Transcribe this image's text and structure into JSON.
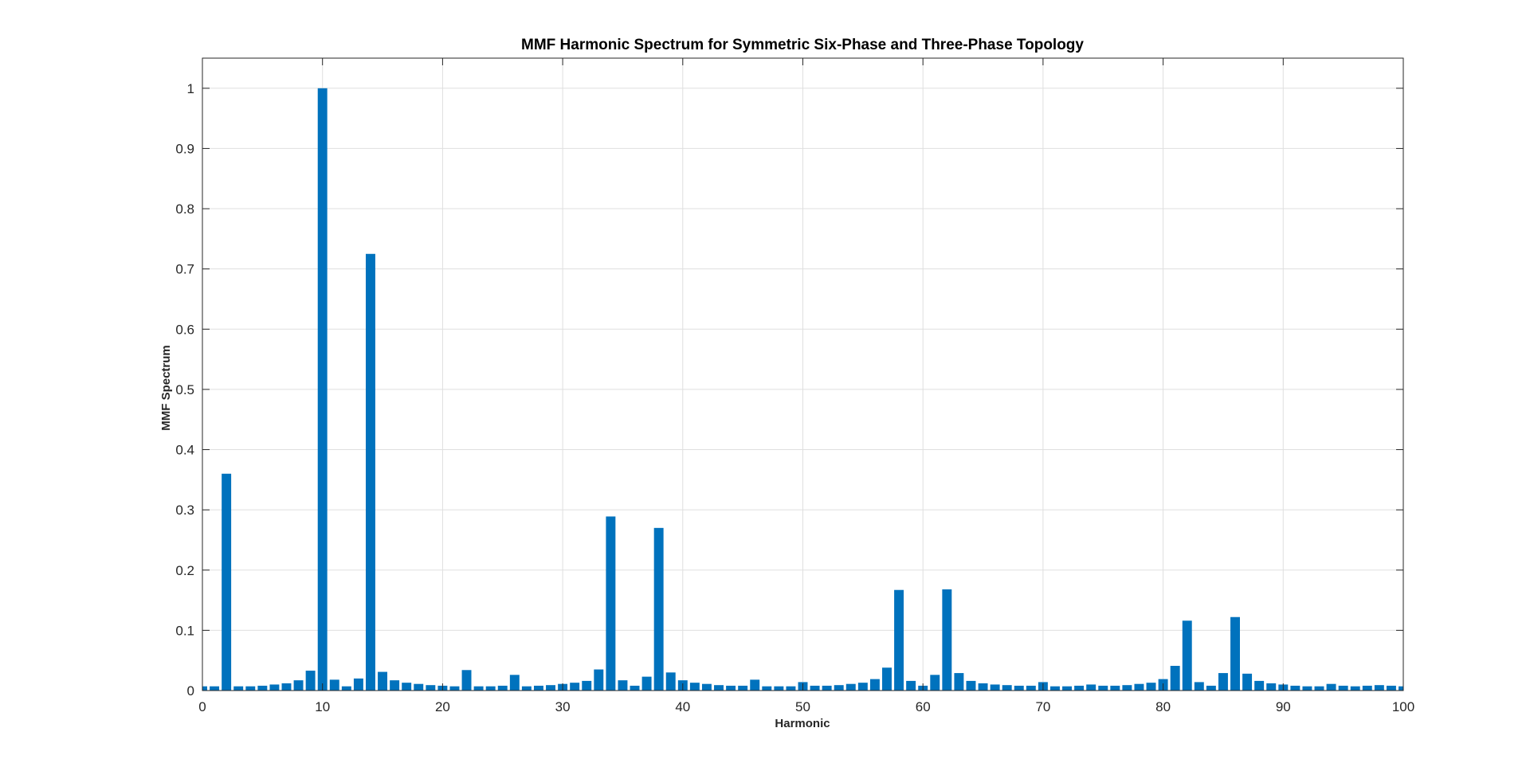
{
  "chart_data": {
    "type": "bar",
    "title": "MMF Harmonic Spectrum for Symmetric Six-Phase and Three-Phase Topology",
    "xlabel": "Harmonic",
    "ylabel": "MMF Spectrum",
    "xlim": [
      0,
      100
    ],
    "ylim": [
      0,
      1.05
    ],
    "xticks": [
      0,
      10,
      20,
      30,
      40,
      50,
      60,
      70,
      80,
      90,
      100
    ],
    "yticks": [
      0,
      0.1,
      0.2,
      0.3,
      0.4,
      0.5,
      0.6,
      0.7,
      0.8,
      0.9,
      1
    ],
    "grid": true,
    "bar_color": "#0072BD",
    "x": [
      0,
      1,
      2,
      3,
      4,
      5,
      6,
      7,
      8,
      9,
      10,
      11,
      12,
      13,
      14,
      15,
      16,
      17,
      18,
      19,
      20,
      21,
      22,
      23,
      24,
      25,
      26,
      27,
      28,
      29,
      30,
      31,
      32,
      33,
      34,
      35,
      36,
      37,
      38,
      39,
      40,
      41,
      42,
      43,
      44,
      45,
      46,
      47,
      48,
      49,
      50,
      51,
      52,
      53,
      54,
      55,
      56,
      57,
      58,
      59,
      60,
      61,
      62,
      63,
      64,
      65,
      66,
      67,
      68,
      69,
      70,
      71,
      72,
      73,
      74,
      75,
      76,
      77,
      78,
      79,
      80,
      81,
      82,
      83,
      84,
      85,
      86,
      87,
      88,
      89,
      90,
      91,
      92,
      93,
      94,
      95,
      96,
      97,
      98,
      99,
      100
    ],
    "values": [
      0.007,
      0.007,
      0.36,
      0.007,
      0.007,
      0.008,
      0.01,
      0.012,
      0.017,
      0.033,
      1.0,
      0.018,
      0.007,
      0.02,
      0.725,
      0.031,
      0.017,
      0.013,
      0.011,
      0.009,
      0.008,
      0.007,
      0.034,
      0.007,
      0.007,
      0.008,
      0.026,
      0.007,
      0.008,
      0.009,
      0.011,
      0.013,
      0.016,
      0.035,
      0.289,
      0.017,
      0.008,
      0.023,
      0.27,
      0.03,
      0.017,
      0.013,
      0.011,
      0.009,
      0.008,
      0.008,
      0.018,
      0.007,
      0.007,
      0.007,
      0.014,
      0.008,
      0.008,
      0.009,
      0.011,
      0.013,
      0.019,
      0.038,
      0.167,
      0.016,
      0.008,
      0.026,
      0.168,
      0.029,
      0.016,
      0.012,
      0.01,
      0.009,
      0.008,
      0.008,
      0.014,
      0.007,
      0.007,
      0.008,
      0.01,
      0.008,
      0.008,
      0.009,
      0.011,
      0.013,
      0.019,
      0.041,
      0.116,
      0.014,
      0.008,
      0.029,
      0.122,
      0.028,
      0.016,
      0.012,
      0.01,
      0.008,
      0.007,
      0.007,
      0.011,
      0.008,
      0.007,
      0.008,
      0.009,
      0.008,
      0.007
    ]
  }
}
